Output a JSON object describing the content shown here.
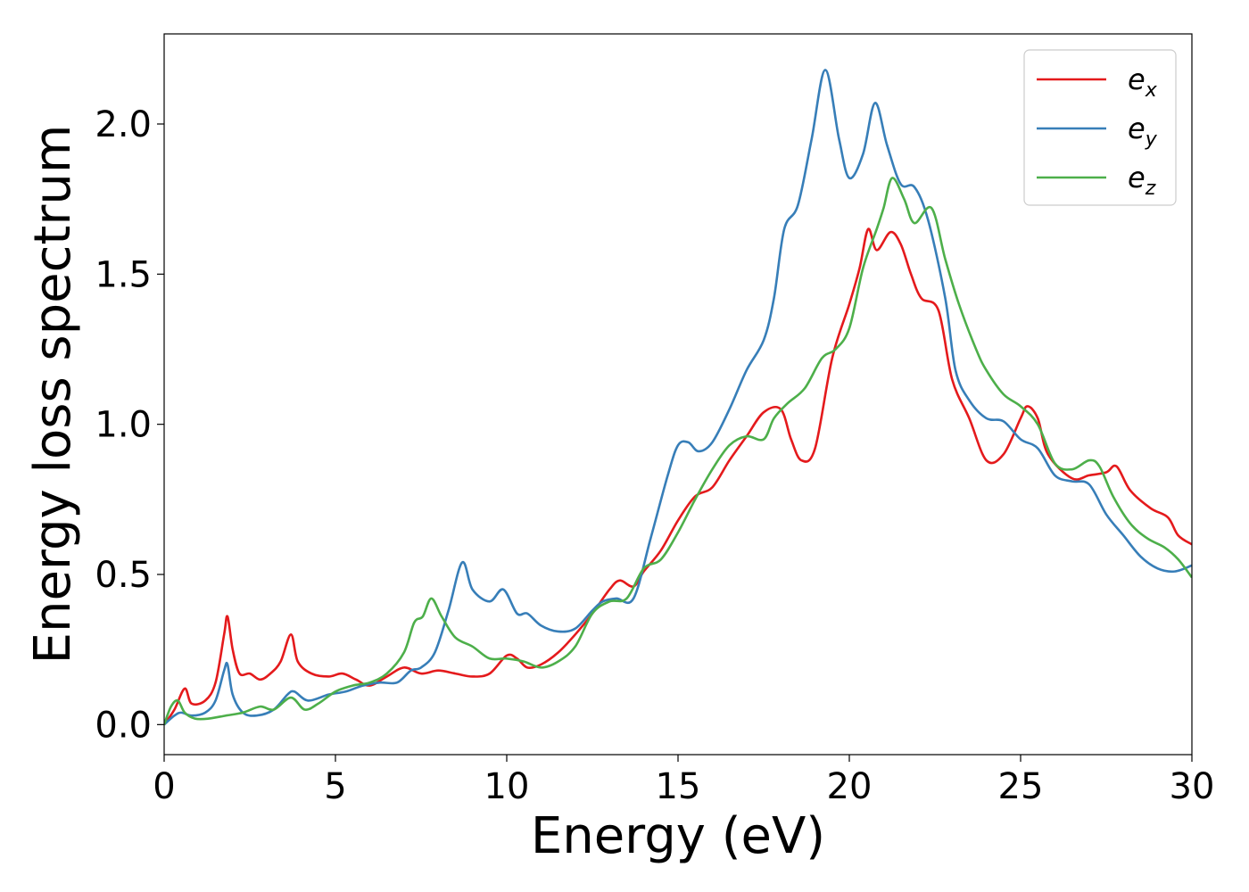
{
  "chart_data": {
    "type": "line",
    "title": "",
    "xlabel": "Energy (eV)",
    "ylabel": "Energy loss spectrum",
    "xlim": [
      0,
      30
    ],
    "ylim": [
      -0.1,
      2.3
    ],
    "xticks": [
      0,
      5,
      10,
      15,
      20,
      25,
      30
    ],
    "xtick_labels": [
      "0",
      "5",
      "10",
      "15",
      "20",
      "25",
      "30"
    ],
    "yticks": [
      0.0,
      0.5,
      1.0,
      1.5,
      2.0
    ],
    "ytick_labels": [
      "0.0",
      "0.5",
      "1.0",
      "1.5",
      "2.0"
    ],
    "grid": false,
    "legend": {
      "position": "top-right",
      "entries": [
        {
          "base": "e",
          "sub": "x",
          "color": "#e41a1c"
        },
        {
          "base": "e",
          "sub": "y",
          "color": "#377eb8"
        },
        {
          "base": "e",
          "sub": "z",
          "color": "#4daf4a"
        }
      ]
    },
    "series": [
      {
        "color": "#e41a1c",
        "points": [
          [
            0,
            0
          ],
          [
            0.3,
            0.05
          ],
          [
            0.6,
            0.12
          ],
          [
            0.8,
            0.07
          ],
          [
            1.2,
            0.08
          ],
          [
            1.5,
            0.14
          ],
          [
            1.75,
            0.3
          ],
          [
            1.85,
            0.36
          ],
          [
            2.0,
            0.25
          ],
          [
            2.2,
            0.17
          ],
          [
            2.5,
            0.17
          ],
          [
            2.8,
            0.15
          ],
          [
            3.1,
            0.17
          ],
          [
            3.4,
            0.21
          ],
          [
            3.7,
            0.3
          ],
          [
            3.9,
            0.21
          ],
          [
            4.3,
            0.17
          ],
          [
            4.8,
            0.16
          ],
          [
            5.2,
            0.17
          ],
          [
            5.6,
            0.15
          ],
          [
            6.0,
            0.13
          ],
          [
            6.5,
            0.16
          ],
          [
            7.0,
            0.19
          ],
          [
            7.5,
            0.17
          ],
          [
            8.0,
            0.18
          ],
          [
            8.5,
            0.17
          ],
          [
            9.0,
            0.16
          ],
          [
            9.5,
            0.17
          ],
          [
            10.0,
            0.23
          ],
          [
            10.3,
            0.22
          ],
          [
            10.6,
            0.19
          ],
          [
            11.0,
            0.2
          ],
          [
            11.5,
            0.24
          ],
          [
            12.0,
            0.3
          ],
          [
            12.5,
            0.37
          ],
          [
            13.0,
            0.45
          ],
          [
            13.3,
            0.48
          ],
          [
            13.7,
            0.46
          ],
          [
            14.0,
            0.51
          ],
          [
            14.5,
            0.58
          ],
          [
            15.0,
            0.68
          ],
          [
            15.5,
            0.76
          ],
          [
            16.0,
            0.79
          ],
          [
            16.5,
            0.88
          ],
          [
            17.0,
            0.96
          ],
          [
            17.5,
            1.04
          ],
          [
            18.0,
            1.05
          ],
          [
            18.3,
            0.95
          ],
          [
            18.6,
            0.88
          ],
          [
            19.0,
            0.92
          ],
          [
            19.5,
            1.22
          ],
          [
            20.0,
            1.4
          ],
          [
            20.3,
            1.52
          ],
          [
            20.55,
            1.65
          ],
          [
            20.8,
            1.58
          ],
          [
            21.2,
            1.64
          ],
          [
            21.5,
            1.6
          ],
          [
            21.8,
            1.5
          ],
          [
            22.1,
            1.42
          ],
          [
            22.6,
            1.38
          ],
          [
            23.0,
            1.15
          ],
          [
            23.5,
            1.02
          ],
          [
            24.0,
            0.88
          ],
          [
            24.5,
            0.9
          ],
          [
            25.0,
            1.02
          ],
          [
            25.2,
            1.06
          ],
          [
            25.5,
            1.02
          ],
          [
            25.8,
            0.9
          ],
          [
            26.5,
            0.82
          ],
          [
            27.0,
            0.83
          ],
          [
            27.5,
            0.84
          ],
          [
            27.8,
            0.86
          ],
          [
            28.2,
            0.78
          ],
          [
            28.8,
            0.72
          ],
          [
            29.3,
            0.69
          ],
          [
            29.6,
            0.63
          ],
          [
            30.0,
            0.6
          ]
        ]
      },
      {
        "color": "#377eb8",
        "points": [
          [
            0,
            0
          ],
          [
            0.3,
            0.03
          ],
          [
            0.5,
            0.04
          ],
          [
            0.8,
            0.03
          ],
          [
            1.2,
            0.04
          ],
          [
            1.5,
            0.08
          ],
          [
            1.75,
            0.18
          ],
          [
            1.85,
            0.2
          ],
          [
            2.0,
            0.1
          ],
          [
            2.3,
            0.04
          ],
          [
            2.7,
            0.03
          ],
          [
            3.2,
            0.05
          ],
          [
            3.6,
            0.1
          ],
          [
            3.8,
            0.11
          ],
          [
            4.2,
            0.08
          ],
          [
            4.8,
            0.1
          ],
          [
            5.3,
            0.11
          ],
          [
            5.8,
            0.13
          ],
          [
            6.3,
            0.14
          ],
          [
            6.8,
            0.14
          ],
          [
            7.2,
            0.18
          ],
          [
            7.5,
            0.19
          ],
          [
            7.9,
            0.24
          ],
          [
            8.3,
            0.38
          ],
          [
            8.7,
            0.54
          ],
          [
            9.0,
            0.45
          ],
          [
            9.5,
            0.41
          ],
          [
            9.9,
            0.45
          ],
          [
            10.3,
            0.37
          ],
          [
            10.6,
            0.37
          ],
          [
            11.0,
            0.33
          ],
          [
            11.5,
            0.31
          ],
          [
            12.0,
            0.32
          ],
          [
            12.5,
            0.38
          ],
          [
            12.8,
            0.41
          ],
          [
            13.2,
            0.42
          ],
          [
            13.7,
            0.42
          ],
          [
            14.2,
            0.62
          ],
          [
            14.7,
            0.83
          ],
          [
            15.0,
            0.93
          ],
          [
            15.3,
            0.94
          ],
          [
            15.6,
            0.91
          ],
          [
            16.0,
            0.94
          ],
          [
            16.5,
            1.05
          ],
          [
            17.0,
            1.18
          ],
          [
            17.5,
            1.28
          ],
          [
            17.8,
            1.42
          ],
          [
            18.1,
            1.65
          ],
          [
            18.5,
            1.73
          ],
          [
            18.9,
            1.95
          ],
          [
            19.3,
            2.18
          ],
          [
            19.7,
            1.95
          ],
          [
            20.0,
            1.82
          ],
          [
            20.4,
            1.9
          ],
          [
            20.75,
            2.07
          ],
          [
            21.1,
            1.93
          ],
          [
            21.5,
            1.8
          ],
          [
            21.9,
            1.79
          ],
          [
            22.3,
            1.68
          ],
          [
            22.8,
            1.42
          ],
          [
            23.1,
            1.18
          ],
          [
            23.5,
            1.08
          ],
          [
            24.0,
            1.02
          ],
          [
            24.5,
            1.01
          ],
          [
            25.0,
            0.95
          ],
          [
            25.5,
            0.92
          ],
          [
            26.0,
            0.83
          ],
          [
            26.5,
            0.81
          ],
          [
            27.0,
            0.8
          ],
          [
            27.5,
            0.7
          ],
          [
            28.0,
            0.63
          ],
          [
            28.5,
            0.56
          ],
          [
            29.0,
            0.52
          ],
          [
            29.5,
            0.51
          ],
          [
            30.0,
            0.53
          ]
        ]
      },
      {
        "color": "#4daf4a",
        "points": [
          [
            0,
            0
          ],
          [
            0.2,
            0.06
          ],
          [
            0.4,
            0.08
          ],
          [
            0.6,
            0.04
          ],
          [
            0.9,
            0.02
          ],
          [
            1.3,
            0.02
          ],
          [
            1.8,
            0.03
          ],
          [
            2.3,
            0.04
          ],
          [
            2.8,
            0.06
          ],
          [
            3.2,
            0.05
          ],
          [
            3.7,
            0.09
          ],
          [
            4.1,
            0.05
          ],
          [
            4.5,
            0.07
          ],
          [
            5.0,
            0.11
          ],
          [
            5.5,
            0.13
          ],
          [
            6.0,
            0.14
          ],
          [
            6.5,
            0.17
          ],
          [
            7.0,
            0.24
          ],
          [
            7.3,
            0.34
          ],
          [
            7.55,
            0.36
          ],
          [
            7.8,
            0.42
          ],
          [
            8.1,
            0.36
          ],
          [
            8.5,
            0.29
          ],
          [
            9.0,
            0.26
          ],
          [
            9.5,
            0.22
          ],
          [
            10.0,
            0.22
          ],
          [
            10.5,
            0.21
          ],
          [
            11.0,
            0.19
          ],
          [
            11.5,
            0.21
          ],
          [
            12.0,
            0.26
          ],
          [
            12.5,
            0.37
          ],
          [
            13.0,
            0.41
          ],
          [
            13.5,
            0.42
          ],
          [
            14.0,
            0.52
          ],
          [
            14.5,
            0.55
          ],
          [
            15.0,
            0.64
          ],
          [
            15.5,
            0.75
          ],
          [
            16.0,
            0.85
          ],
          [
            16.5,
            0.93
          ],
          [
            17.0,
            0.96
          ],
          [
            17.5,
            0.95
          ],
          [
            17.8,
            1.02
          ],
          [
            18.2,
            1.07
          ],
          [
            18.7,
            1.12
          ],
          [
            19.2,
            1.22
          ],
          [
            19.6,
            1.25
          ],
          [
            20.0,
            1.32
          ],
          [
            20.4,
            1.52
          ],
          [
            20.8,
            1.65
          ],
          [
            21.0,
            1.72
          ],
          [
            21.25,
            1.82
          ],
          [
            21.6,
            1.75
          ],
          [
            21.9,
            1.67
          ],
          [
            22.4,
            1.72
          ],
          [
            22.8,
            1.55
          ],
          [
            23.2,
            1.4
          ],
          [
            23.7,
            1.25
          ],
          [
            24.0,
            1.18
          ],
          [
            24.5,
            1.1
          ],
          [
            25.0,
            1.06
          ],
          [
            25.5,
            1.0
          ],
          [
            26.0,
            0.87
          ],
          [
            26.5,
            0.85
          ],
          [
            27.0,
            0.88
          ],
          [
            27.3,
            0.86
          ],
          [
            27.7,
            0.76
          ],
          [
            28.2,
            0.67
          ],
          [
            28.7,
            0.62
          ],
          [
            29.2,
            0.59
          ],
          [
            29.6,
            0.55
          ],
          [
            30.0,
            0.49
          ]
        ]
      }
    ]
  }
}
